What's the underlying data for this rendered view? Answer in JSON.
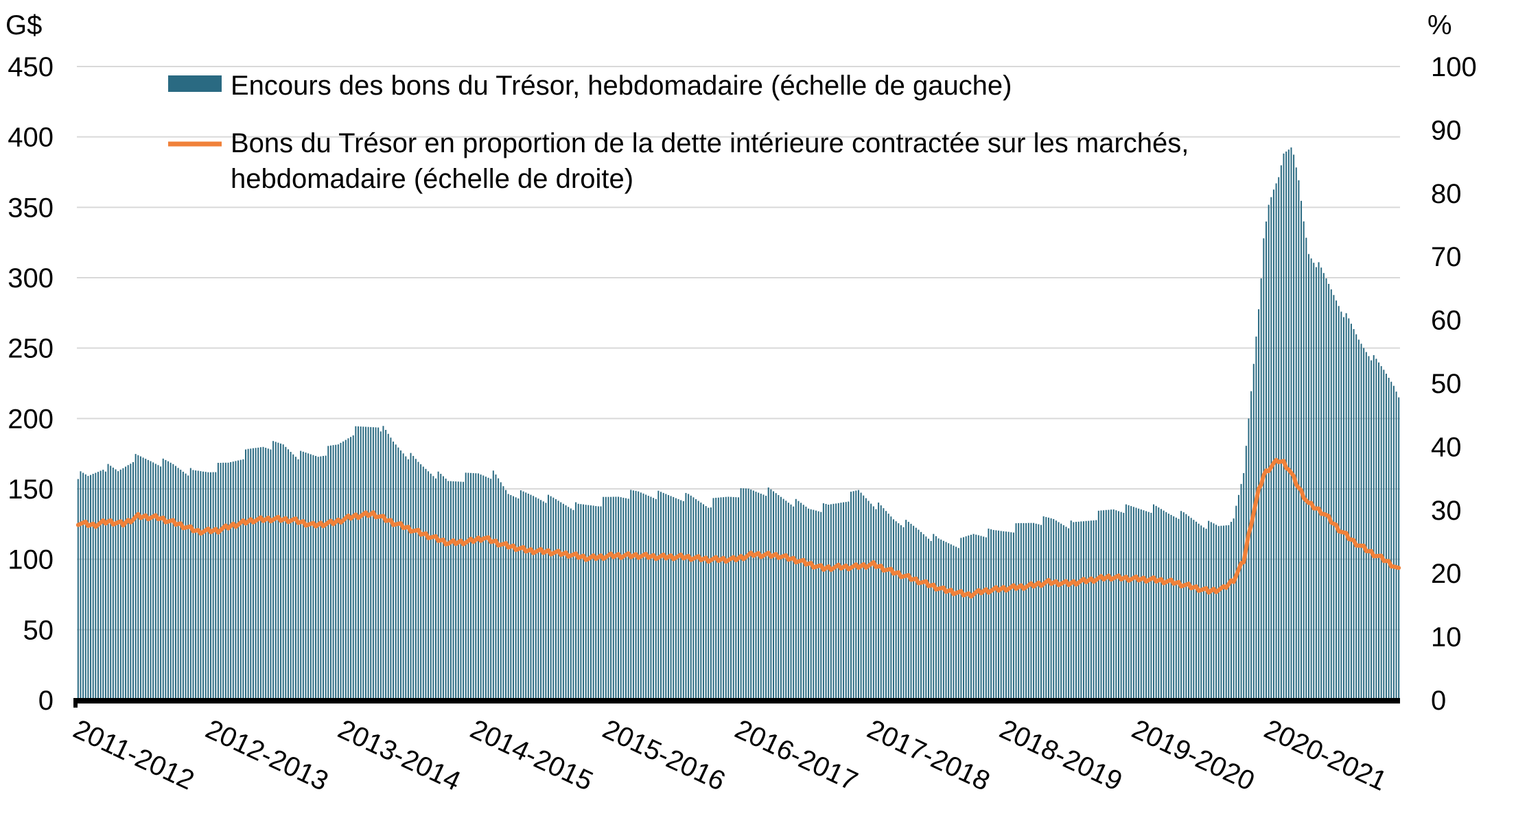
{
  "chart_data": {
    "type": "bar",
    "title": "",
    "left_axis": {
      "unit_label": "G$",
      "ylim": [
        0,
        450
      ],
      "ticks": [
        "0",
        "50",
        "100",
        "150",
        "200",
        "250",
        "300",
        "350",
        "400",
        "450"
      ]
    },
    "right_axis": {
      "unit_label": "%",
      "ylim": [
        0,
        100
      ],
      "ticks": [
        "0",
        "10",
        "20",
        "30",
        "40",
        "50",
        "60",
        "70",
        "80",
        "90",
        "100"
      ]
    },
    "categories": [
      "2011-2012",
      "2012-2013",
      "2013-2014",
      "2014-2015",
      "2015-2016",
      "2016-2017",
      "2017-2018",
      "2018-2019",
      "2019-2020",
      "2020-2021"
    ],
    "grid": true,
    "legend_position": "top",
    "series": [
      {
        "name": "Encours des bons du Trésor, hebdomadaire (échelle de gauche)",
        "type": "bar",
        "axis": "left",
        "frequency": "weekly",
        "color": "#2a6a82",
        "anchors": [
          [
            0,
            160
          ],
          [
            4,
            158
          ],
          [
            10,
            166
          ],
          [
            16,
            162
          ],
          [
            22,
            172
          ],
          [
            30,
            170
          ],
          [
            38,
            167
          ],
          [
            46,
            161
          ],
          [
            52,
            163
          ],
          [
            60,
            168
          ],
          [
            68,
            176
          ],
          [
            74,
            181
          ],
          [
            82,
            181
          ],
          [
            88,
            174
          ],
          [
            96,
            174
          ],
          [
            104,
            181
          ],
          [
            110,
            191
          ],
          [
            116,
            194
          ],
          [
            120,
            196
          ],
          [
            126,
            183
          ],
          [
            136,
            168
          ],
          [
            148,
            155
          ],
          [
            160,
            161
          ],
          [
            166,
            160
          ],
          [
            172,
            147
          ],
          [
            182,
            145
          ],
          [
            190,
            142
          ],
          [
            200,
            137
          ],
          [
            208,
            140
          ],
          [
            216,
            145
          ],
          [
            224,
            147
          ],
          [
            236,
            145
          ],
          [
            244,
            144
          ],
          [
            252,
            139
          ],
          [
            260,
            145
          ],
          [
            268,
            149
          ],
          [
            276,
            148
          ],
          [
            284,
            142
          ],
          [
            292,
            136
          ],
          [
            300,
            137
          ],
          [
            308,
            144
          ],
          [
            312,
            148
          ],
          [
            318,
            140
          ],
          [
            326,
            129
          ],
          [
            336,
            121
          ],
          [
            344,
            113
          ],
          [
            352,
            111
          ],
          [
            358,
            118
          ],
          [
            366,
            119
          ],
          [
            374,
            122
          ],
          [
            382,
            127
          ],
          [
            390,
            128
          ],
          [
            398,
            124
          ],
          [
            406,
            130
          ],
          [
            414,
            136
          ],
          [
            422,
            136
          ],
          [
            430,
            136
          ],
          [
            436,
            133
          ],
          [
            442,
            131
          ],
          [
            450,
            125
          ],
          [
            456,
            123
          ],
          [
            460,
            126
          ],
          [
            463,
            135
          ],
          [
            466,
            160
          ],
          [
            468,
            200
          ],
          [
            470,
            240
          ],
          [
            472,
            280
          ],
          [
            474,
            325
          ],
          [
            476,
            350
          ],
          [
            478,
            362
          ],
          [
            480,
            372
          ],
          [
            482,
            390
          ],
          [
            484,
            394
          ],
          [
            486,
            385
          ],
          [
            488,
            368
          ],
          [
            490,
            340
          ],
          [
            492,
            318
          ],
          [
            496,
            308
          ],
          [
            500,
            295
          ],
          [
            506,
            275
          ],
          [
            512,
            256
          ],
          [
            518,
            242
          ],
          [
            522,
            234
          ],
          [
            526,
            225
          ],
          [
            528,
            218
          ]
        ]
      },
      {
        "name": "Bons du Trésor en proportion de la dette intérieure contractée sur les marchés, hebdomadaire (échelle de droite)",
        "type": "line",
        "axis": "right",
        "frequency": "weekly",
        "color": "#f0813a",
        "anchors": [
          [
            0,
            28
          ],
          [
            6,
            27.6
          ],
          [
            12,
            28.2
          ],
          [
            18,
            27.8
          ],
          [
            24,
            29
          ],
          [
            32,
            28.8
          ],
          [
            40,
            27.8
          ],
          [
            48,
            26.6
          ],
          [
            56,
            26.8
          ],
          [
            62,
            27.6
          ],
          [
            70,
            28.4
          ],
          [
            78,
            28.6
          ],
          [
            86,
            28.4
          ],
          [
            94,
            27.6
          ],
          [
            102,
            28
          ],
          [
            110,
            29
          ],
          [
            118,
            29.4
          ],
          [
            126,
            28
          ],
          [
            136,
            26.5
          ],
          [
            148,
            24.8
          ],
          [
            156,
            25
          ],
          [
            162,
            25.6
          ],
          [
            170,
            24.5
          ],
          [
            180,
            23.6
          ],
          [
            188,
            23.4
          ],
          [
            196,
            23
          ],
          [
            204,
            22.4
          ],
          [
            214,
            22.8
          ],
          [
            224,
            22.8
          ],
          [
            232,
            22.6
          ],
          [
            242,
            22.6
          ],
          [
            252,
            22.2
          ],
          [
            262,
            22.2
          ],
          [
            270,
            23
          ],
          [
            280,
            22.8
          ],
          [
            288,
            22
          ],
          [
            298,
            20.8
          ],
          [
            304,
            21
          ],
          [
            310,
            21
          ],
          [
            318,
            21.4
          ],
          [
            326,
            20.2
          ],
          [
            336,
            18.8
          ],
          [
            346,
            17.4
          ],
          [
            356,
            16.6
          ],
          [
            362,
            17.2
          ],
          [
            370,
            17.6
          ],
          [
            380,
            18
          ],
          [
            388,
            18.6
          ],
          [
            396,
            18.4
          ],
          [
            404,
            18.9
          ],
          [
            412,
            19.4
          ],
          [
            420,
            19.2
          ],
          [
            430,
            19
          ],
          [
            438,
            18.6
          ],
          [
            446,
            17.8
          ],
          [
            452,
            17.2
          ],
          [
            458,
            17.6
          ],
          [
            462,
            19
          ],
          [
            466,
            22
          ],
          [
            469,
            28
          ],
          [
            472,
            33
          ],
          [
            474,
            35.5
          ],
          [
            476,
            36.5
          ],
          [
            478,
            37.3
          ],
          [
            480,
            37.8
          ],
          [
            482,
            37.5
          ],
          [
            484,
            36.5
          ],
          [
            488,
            33.5
          ],
          [
            492,
            31
          ],
          [
            498,
            29.5
          ],
          [
            504,
            27
          ],
          [
            510,
            25
          ],
          [
            516,
            23.5
          ],
          [
            522,
            22.2
          ],
          [
            526,
            21.2
          ],
          [
            528,
            20.5
          ]
        ]
      }
    ]
  }
}
